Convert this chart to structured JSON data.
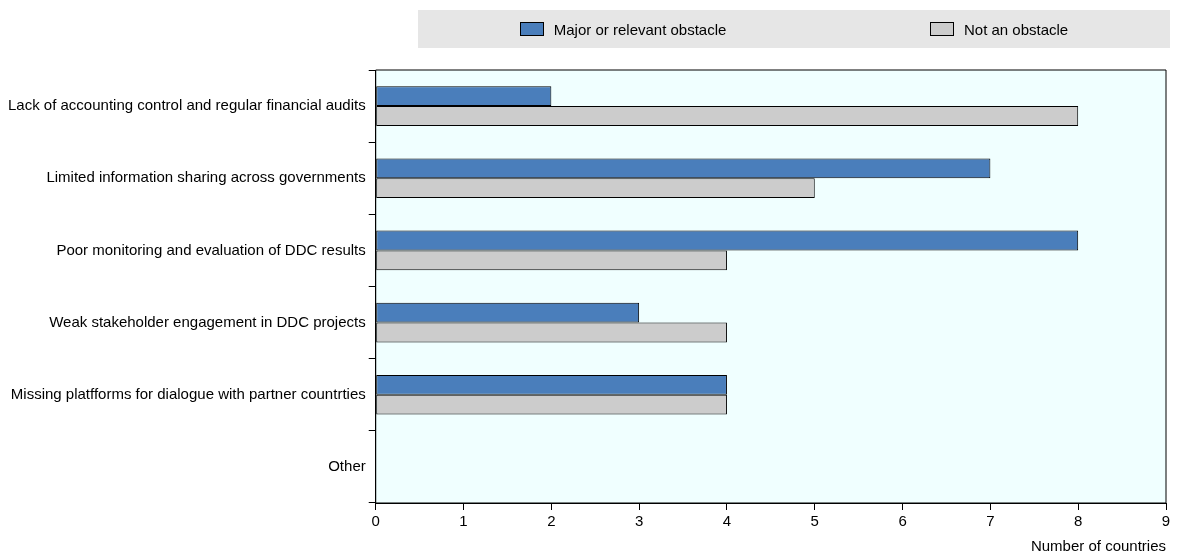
{
  "chart_data": {
    "type": "bar",
    "orientation": "horizontal",
    "xlabel": "Number of countries",
    "categories": [
      "Lack of accounting control and regular financial audits",
      "Limited information sharing across governments",
      "Poor monitoring and evaluation of DDC results",
      "Weak stakeholder engagement in DDC projects",
      "Missing platfforms for dialogue with partner countrties",
      "Other"
    ],
    "series": [
      {
        "name": "Major or relevant obstacle",
        "color": "#4a7ebb",
        "values": [
          2,
          7,
          8,
          3,
          4,
          null
        ]
      },
      {
        "name": "Not an obstacle",
        "color": "#cccccc",
        "values": [
          8,
          5,
          4,
          4,
          4,
          null
        ]
      }
    ],
    "xlim": [
      0,
      9
    ],
    "xticks": [
      0,
      1,
      2,
      3,
      4,
      5,
      6,
      7,
      8,
      9
    ],
    "grid": false,
    "legend": "top"
  }
}
